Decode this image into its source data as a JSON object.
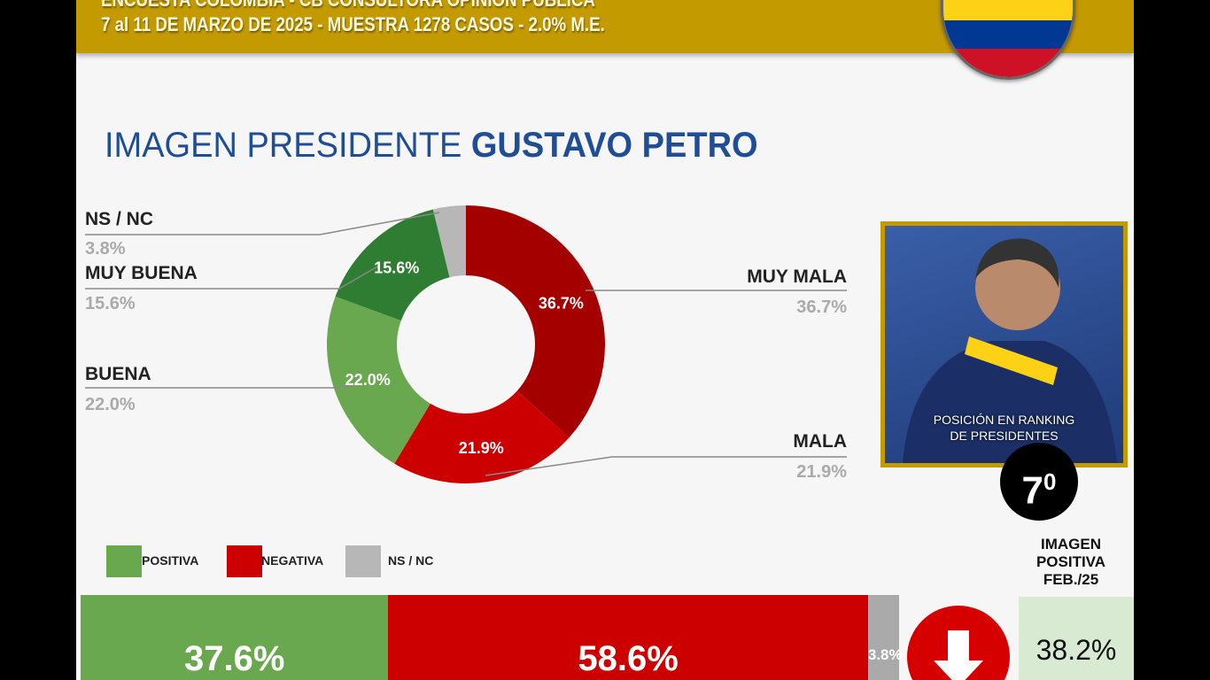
{
  "header": {
    "line1": "ENCUESTA COLOMBIA - CB CONSULTORA OPINIÓN PÚBLICA",
    "line2": "7 al 11 DE MARZO DE 2025 - MUESTRA 1278 CASOS - 2.0% M.E."
  },
  "title": {
    "normal": "IMAGEN PRESIDENTE ",
    "bold": "GUSTAVO PETRO"
  },
  "chart_data": [
    {
      "type": "pie",
      "donut": true,
      "categories": [
        "MUY MALA",
        "MALA",
        "BUENA",
        "MUY BUENA",
        "NS / NC"
      ],
      "values": [
        36.7,
        21.9,
        22.0,
        15.6,
        3.8
      ],
      "labels": [
        "36.7%",
        "21.9%",
        "22.0%",
        "15.6%",
        "3.8%"
      ],
      "colors": [
        "#a50000",
        "#cc0000",
        "#6aa84f",
        "#2e7d32",
        "#b7b7b7"
      ]
    },
    {
      "type": "bar",
      "stacked": true,
      "orientation": "horizontal",
      "legend": [
        "POSITIVA",
        "NEGATIVA",
        "NS / NC"
      ],
      "values": [
        37.6,
        58.6,
        3.8
      ],
      "labels": [
        "37.6%",
        "58.6%",
        "3.8%"
      ],
      "colors": [
        "#6aa84f",
        "#cc0000",
        "#aaaaaa"
      ]
    }
  ],
  "ranking": {
    "caption1": "POSICIÓN EN RANKING",
    "caption2": "DE PRESIDENTES",
    "position": "7",
    "suffix": "0"
  },
  "previous": {
    "l1": "IMAGEN",
    "l2": "POSITIVA",
    "l3": "FEB./25",
    "value": "38.2%",
    "trend": "down"
  },
  "flag_colors": [
    "#fcd116",
    "#003893",
    "#ce1126"
  ]
}
